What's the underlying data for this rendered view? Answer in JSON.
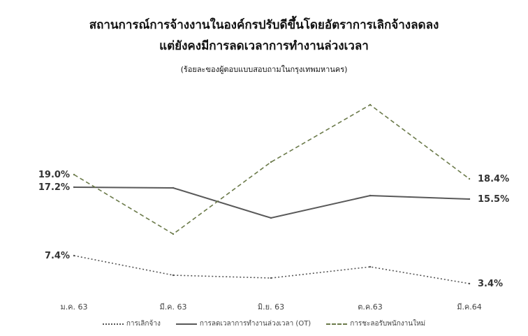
{
  "title_line1": "สถานการณ์การจ้างงานในองค์กรปรับดีขึ้นโดยอัตราการเลิกจ้างลดลง",
  "title_line2": "แต่ยังคงมีการลดเวลาการทำงานล่วงเวลา",
  "subtitle": "(ร้อยละของผู้ตอบแบบสอบถามในกรุงเทพมหานคร)",
  "chart_data": {
    "type": "line",
    "categories": [
      "ม.ค. 63",
      "มี.ค. 63",
      "มิ.ย. 63",
      "ต.ค.63",
      "มี.ค.64"
    ],
    "ylim": [
      0,
      32
    ],
    "grid": false,
    "legend_position": "bottom",
    "series": [
      {
        "name": "การเลิกจ้าง",
        "values": [
          7.4,
          4.6,
          4.2,
          5.8,
          3.4
        ],
        "color": "#555555",
        "style": "dotted",
        "labels": {
          "0": "7.4%",
          "4": "3.4%"
        }
      },
      {
        "name": "การลดเวลาการทำงานล่วงเวลา (OT)",
        "values": [
          17.2,
          17.1,
          12.8,
          16.0,
          15.5
        ],
        "color": "#595959",
        "style": "solid",
        "labels": {
          "0": "17.2%",
          "4": "15.5%"
        }
      },
      {
        "name": "การชะลอรับพนักงานใหม่",
        "values": [
          19.0,
          10.5,
          20.8,
          29.0,
          18.4
        ],
        "color": "#6b7a4a",
        "style": "dashed",
        "labels": {
          "0": "19.0%",
          "4": "18.4%"
        }
      }
    ]
  }
}
